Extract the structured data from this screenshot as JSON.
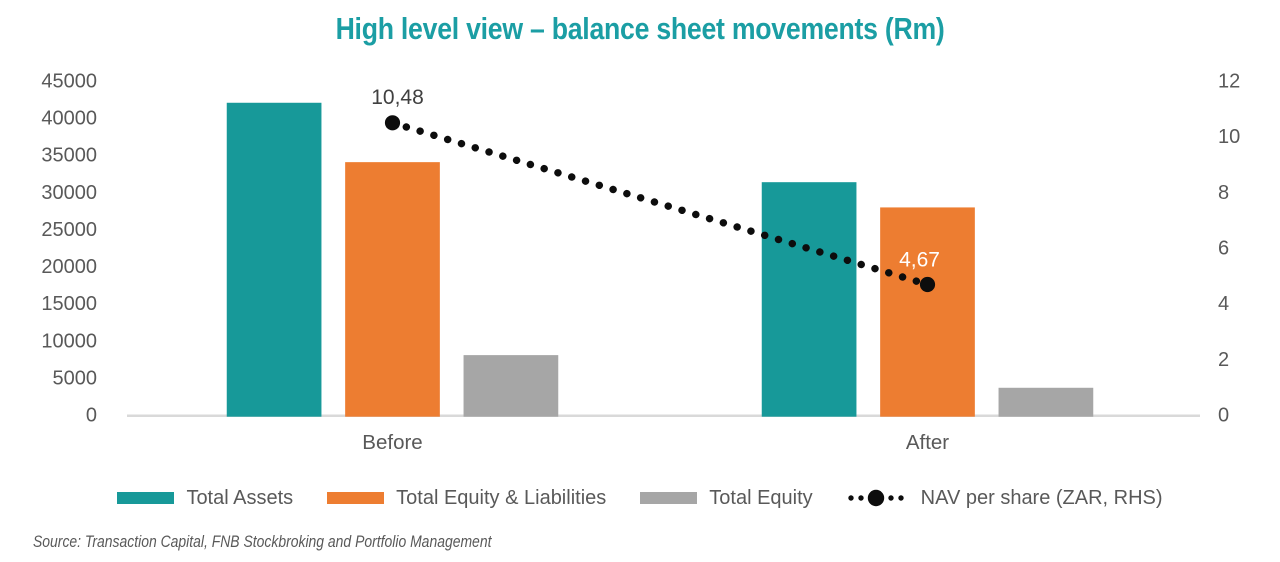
{
  "title": "High level view – balance sheet movements (Rm)",
  "source": "Source: Transaction Capital, FNB Stockbroking and Portfolio Management",
  "colors": {
    "title": "#1B9EA4",
    "axis_text": "#595959",
    "axis_line": "#D9D9D9",
    "category_text": "#595959",
    "legend_text": "#595959"
  },
  "chart_data": {
    "type": "bar",
    "subtype": "grouped bars with dotted line on secondary axis",
    "title": "High level view – balance sheet movements (Rm)",
    "categories": [
      "Before",
      "After"
    ],
    "series": [
      {
        "name": "Total Assets",
        "type": "bar",
        "color": "#179999",
        "values": [
          42000,
          31300
        ]
      },
      {
        "name": "Total Equity & Liabilities",
        "type": "bar",
        "color": "#ED7D31",
        "values": [
          34000,
          27900
        ]
      },
      {
        "name": "Total Equity",
        "type": "bar",
        "color": "#A6A6A6",
        "values": [
          8000,
          3600
        ]
      },
      {
        "name": "NAV per share (ZAR, RHS)",
        "type": "line-dotted",
        "axis": "right",
        "color": "#0D0D0D",
        "values": [
          10.48,
          4.67
        ],
        "point_labels": [
          "10,48",
          "4,67"
        ],
        "point_label_colors": [
          "#404040",
          "#FFFFFF"
        ]
      }
    ],
    "left_axis": {
      "min": 0,
      "max": 45000,
      "step": 5000,
      "tick_labels": [
        "0",
        "5000",
        "10000",
        "15000",
        "20000",
        "25000",
        "30000",
        "35000",
        "40000",
        "45000"
      ]
    },
    "right_axis": {
      "min": 0,
      "max": 12,
      "step": 2,
      "tick_labels": [
        "0",
        "2",
        "4",
        "6",
        "8",
        "10",
        "12"
      ]
    },
    "grid": false,
    "legend_position": "bottom"
  }
}
